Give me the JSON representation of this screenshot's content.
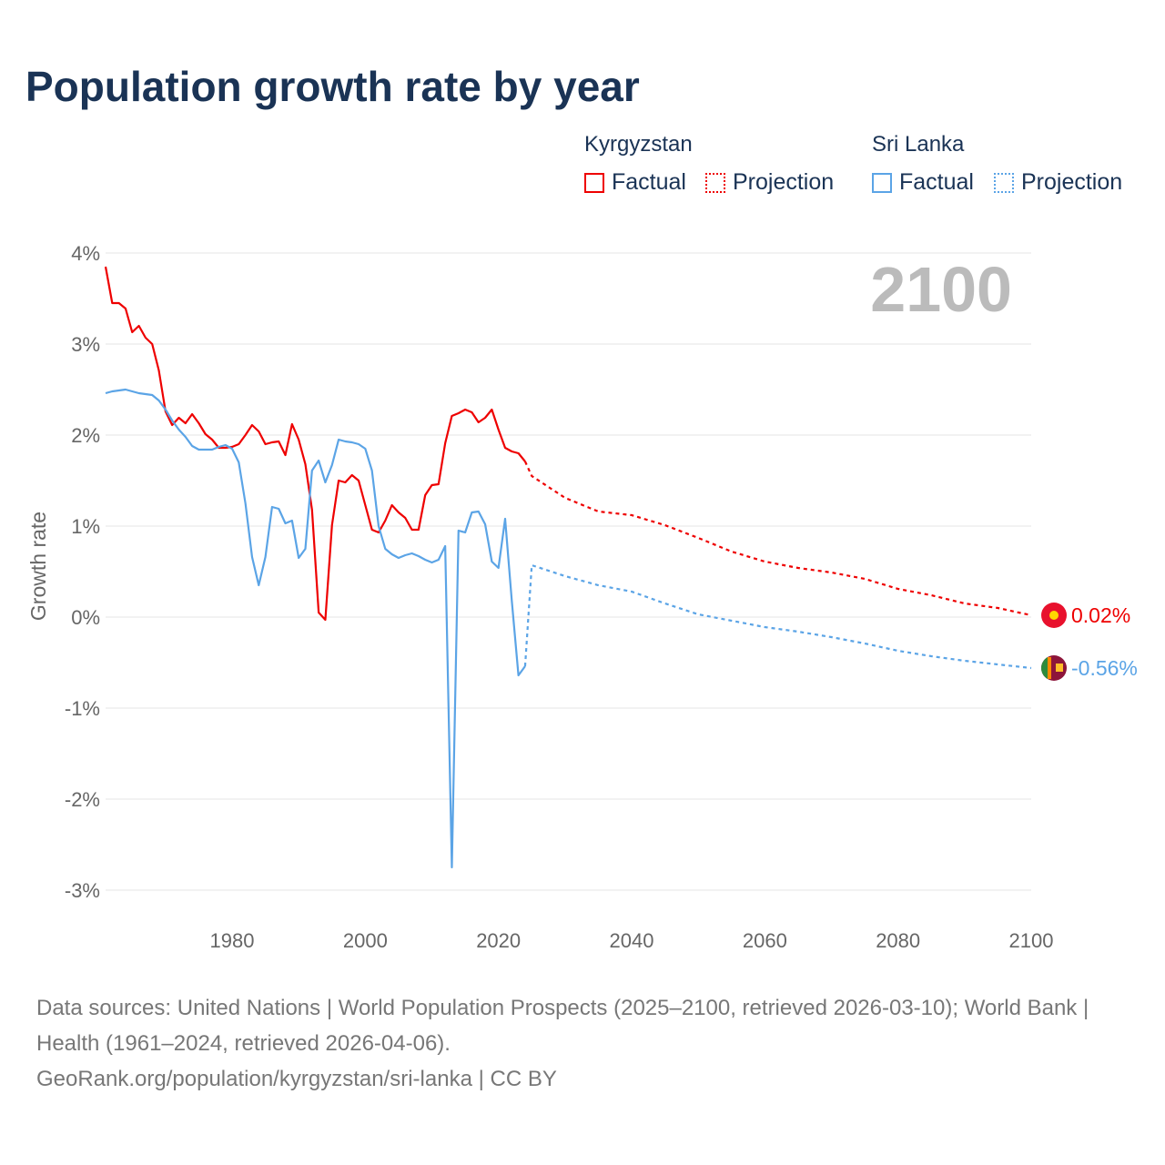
{
  "title": "Population growth rate by year",
  "legend": {
    "groups": [
      {
        "name": "Kyrgyzstan",
        "color": "#ee0000",
        "factual": "Factual",
        "projection": "Projection"
      },
      {
        "name": "Sri Lanka",
        "color": "#5ba4e6",
        "factual": "Factual",
        "projection": "Projection"
      }
    ]
  },
  "chart_data": {
    "type": "line",
    "title": "Population growth rate by year",
    "ylabel": "Growth rate",
    "xlabel": "",
    "xlim": [
      1961,
      2100
    ],
    "ylim": [
      -3,
      4
    ],
    "x_ticks": [
      {
        "v": 1980,
        "label": "1980"
      },
      {
        "v": 2000,
        "label": "2000"
      },
      {
        "v": 2020,
        "label": "2020"
      },
      {
        "v": 2040,
        "label": "2040"
      },
      {
        "v": 2060,
        "label": "2060"
      },
      {
        "v": 2080,
        "label": "2080"
      },
      {
        "v": 2100,
        "label": "2100"
      }
    ],
    "y_ticks": [
      {
        "v": 4,
        "label": "4%"
      },
      {
        "v": 3,
        "label": "3%"
      },
      {
        "v": 2,
        "label": "2%"
      },
      {
        "v": 1,
        "label": "1%"
      },
      {
        "v": 0,
        "label": "0%"
      },
      {
        "v": -1,
        "label": "-1%"
      },
      {
        "v": -2,
        "label": "-2%"
      },
      {
        "v": -3,
        "label": "-3%"
      }
    ],
    "year_label": "2100",
    "grid": true,
    "series": [
      {
        "name": "Kyrgyzstan",
        "color": "#ee0000",
        "end_label": "0.02%",
        "factual_start": 1961,
        "factual": [
          3.85,
          3.45,
          3.45,
          3.39,
          3.13,
          3.2,
          3.07,
          3.0,
          2.71,
          2.26,
          2.11,
          2.19,
          2.13,
          2.23,
          2.13,
          2.01,
          1.95,
          1.86,
          1.86,
          1.87,
          1.9,
          2.0,
          2.11,
          2.04,
          1.9,
          1.92,
          1.93,
          1.78,
          2.12,
          1.95,
          1.68,
          1.18,
          0.05,
          -0.03,
          1.01,
          1.5,
          1.48,
          1.56,
          1.5,
          1.23,
          0.96,
          0.93,
          1.06,
          1.23,
          1.15,
          1.09,
          0.96,
          0.96,
          1.34,
          1.45,
          1.46,
          1.91,
          2.21,
          2.24,
          2.28,
          2.25,
          2.14,
          2.19,
          2.28,
          2.06,
          1.86,
          1.82,
          1.8,
          1.71
        ],
        "projection": [
          [
            2025,
            1.55
          ],
          [
            2030,
            1.31
          ],
          [
            2035,
            1.16
          ],
          [
            2040,
            1.12
          ],
          [
            2045,
            1.01
          ],
          [
            2050,
            0.87
          ],
          [
            2055,
            0.72
          ],
          [
            2060,
            0.61
          ],
          [
            2065,
            0.54
          ],
          [
            2070,
            0.49
          ],
          [
            2075,
            0.42
          ],
          [
            2080,
            0.31
          ],
          [
            2085,
            0.24
          ],
          [
            2090,
            0.15
          ],
          [
            2095,
            0.1
          ],
          [
            2100,
            0.02
          ]
        ]
      },
      {
        "name": "Sri Lanka",
        "color": "#5ba4e6",
        "end_label": "-0.56%",
        "factual_start": 1961,
        "factual": [
          2.46,
          2.48,
          2.49,
          2.5,
          2.48,
          2.46,
          2.45,
          2.44,
          2.38,
          2.28,
          2.16,
          2.06,
          1.98,
          1.88,
          1.84,
          1.84,
          1.84,
          1.87,
          1.89,
          1.85,
          1.7,
          1.25,
          0.66,
          0.35,
          0.66,
          1.21,
          1.19,
          1.03,
          1.06,
          0.65,
          0.75,
          1.61,
          1.72,
          1.48,
          1.67,
          1.95,
          1.93,
          1.92,
          1.9,
          1.85,
          1.61,
          1.0,
          0.75,
          0.69,
          0.65,
          0.68,
          0.7,
          0.67,
          0.63,
          0.6,
          0.63,
          0.78,
          -2.75,
          0.95,
          0.93,
          1.15,
          1.16,
          1.02,
          0.61,
          0.54,
          1.08,
          0.18,
          -0.64,
          -0.54
        ],
        "projection": [
          [
            2025,
            0.57
          ],
          [
            2030,
            0.45
          ],
          [
            2035,
            0.35
          ],
          [
            2040,
            0.28
          ],
          [
            2045,
            0.15
          ],
          [
            2050,
            0.03
          ],
          [
            2055,
            -0.04
          ],
          [
            2060,
            -0.11
          ],
          [
            2065,
            -0.16
          ],
          [
            2070,
            -0.22
          ],
          [
            2075,
            -0.29
          ],
          [
            2080,
            -0.37
          ],
          [
            2085,
            -0.43
          ],
          [
            2090,
            -0.48
          ],
          [
            2095,
            -0.52
          ],
          [
            2100,
            -0.56
          ]
        ]
      }
    ]
  },
  "footer": {
    "sources": "Data sources: United Nations | World Population Prospects (2025–2100, retrieved 2026-03-10); World Bank | Health (1961–2024, retrieved 2026-04-06).",
    "link": "GeoRank.org/population/kyrgyzstan/sri-lanka | CC BY"
  }
}
